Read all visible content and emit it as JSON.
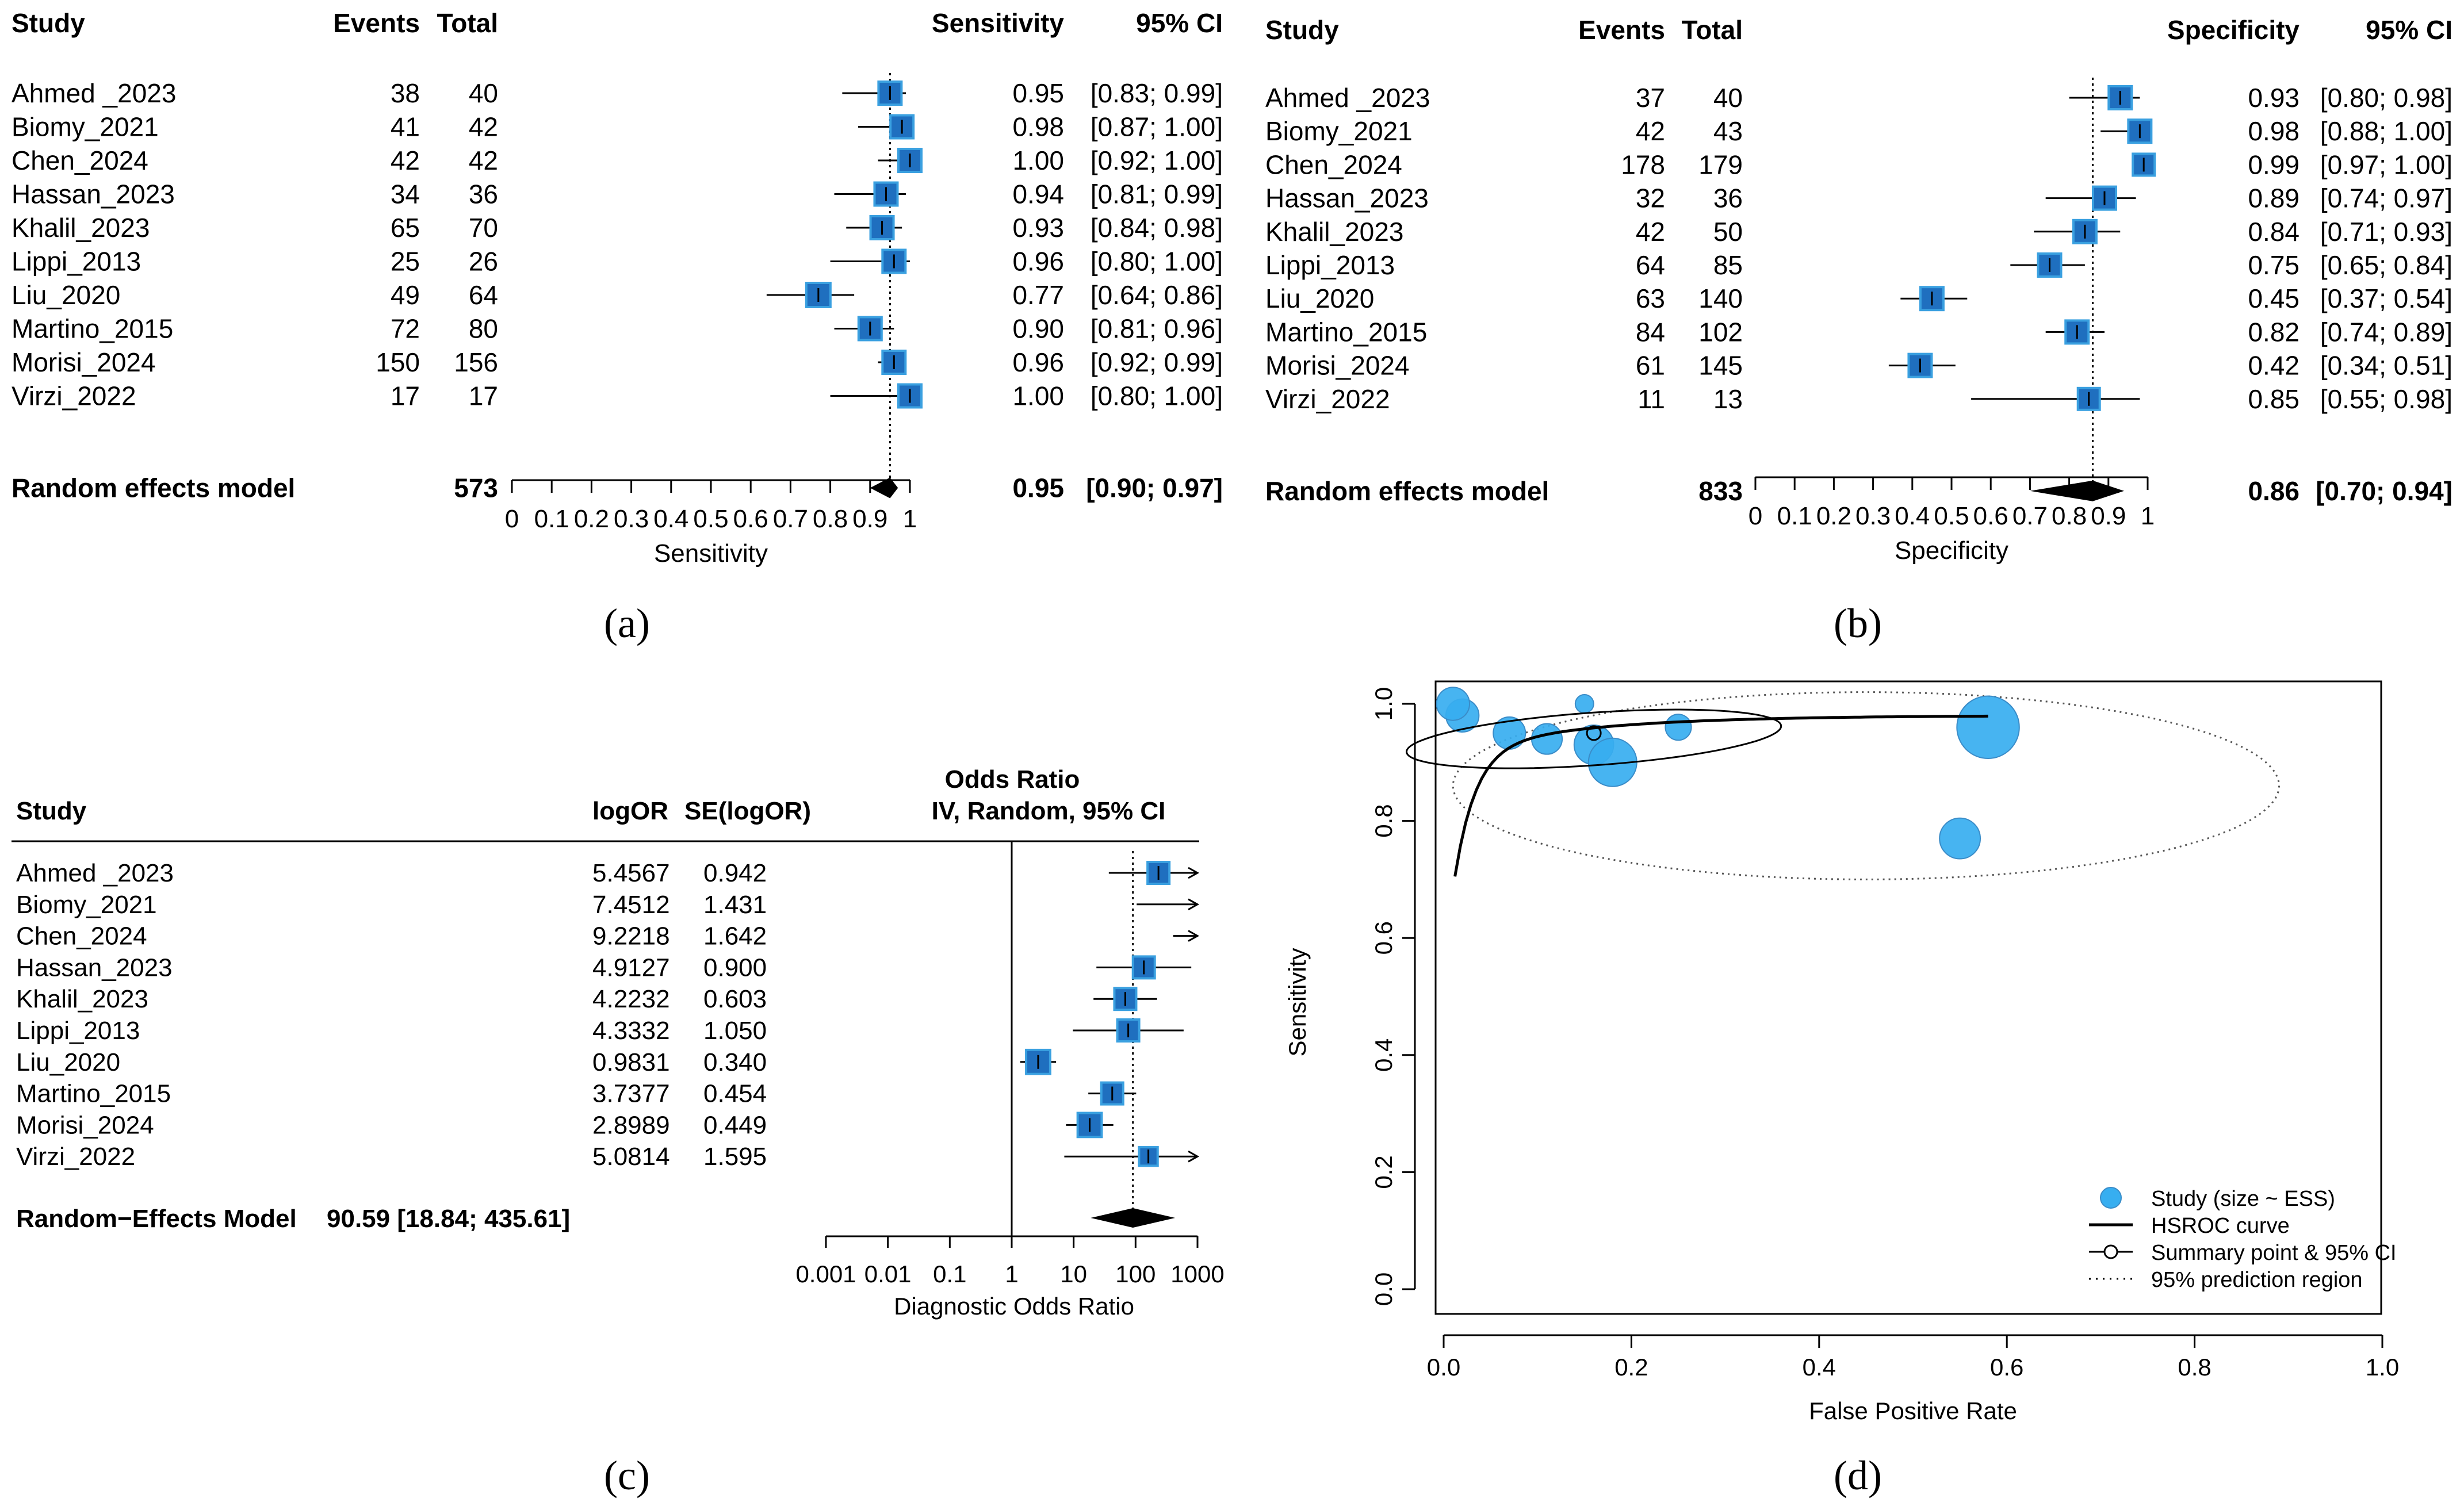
{
  "colors": {
    "box": "#1f6fbf",
    "box_edge": "#3aa0e0",
    "bubble": "#37aef0",
    "bubble_edge": "#3a8cc8",
    "ink": "#000000",
    "dotted": "#555555"
  },
  "panels": {
    "a": {
      "label": "(a)"
    },
    "b": {
      "label": "(b)"
    },
    "c": {
      "label": "(c)"
    },
    "d": {
      "label": "(d)"
    }
  },
  "chart_data": [
    {
      "id": "a",
      "type": "table",
      "headers": {
        "study": "Study",
        "events": "Events",
        "total": "Total",
        "estimate": "Sensitivity",
        "ci": "95% CI"
      },
      "rows": [
        {
          "study": "Ahmed _2023",
          "events": "38",
          "total": "40",
          "est": 0.95,
          "lo": 0.83,
          "hi": 0.99,
          "est_text": "0.95",
          "ci_text": "[0.83; 0.99]",
          "w": 1.0
        },
        {
          "study": "Biomy_2021",
          "events": "41",
          "total": "42",
          "est": 0.98,
          "lo": 0.87,
          "hi": 1.0,
          "est_text": "0.98",
          "ci_text": "[0.87; 1.00]",
          "w": 1.0
        },
        {
          "study": "Chen_2024",
          "events": "42",
          "total": "42",
          "est": 1.0,
          "lo": 0.92,
          "hi": 1.0,
          "est_text": "1.00",
          "ci_text": "[0.92; 1.00]",
          "w": 1.0
        },
        {
          "study": "Hassan_2023",
          "events": "34",
          "total": "36",
          "est": 0.94,
          "lo": 0.81,
          "hi": 0.99,
          "est_text": "0.94",
          "ci_text": "[0.81; 0.99]",
          "w": 1.0
        },
        {
          "study": "Khalil_2023",
          "events": "65",
          "total": "70",
          "est": 0.93,
          "lo": 0.84,
          "hi": 0.98,
          "est_text": "0.93",
          "ci_text": "[0.84; 0.98]",
          "w": 1.0
        },
        {
          "study": "Lippi_2013",
          "events": "25",
          "total": "26",
          "est": 0.96,
          "lo": 0.8,
          "hi": 1.0,
          "est_text": "0.96",
          "ci_text": "[0.80; 1.00]",
          "w": 1.0
        },
        {
          "study": "Liu_2020",
          "events": "49",
          "total": "64",
          "est": 0.77,
          "lo": 0.64,
          "hi": 0.86,
          "est_text": "0.77",
          "ci_text": "[0.64; 0.86]",
          "w": 1.05
        },
        {
          "study": "Martino_2015",
          "events": "72",
          "total": "80",
          "est": 0.9,
          "lo": 0.81,
          "hi": 0.96,
          "est_text": "0.90",
          "ci_text": "[0.81; 0.96]",
          "w": 1.0
        },
        {
          "study": "Morisi_2024",
          "events": "150",
          "total": "156",
          "est": 0.96,
          "lo": 0.92,
          "hi": 0.99,
          "est_text": "0.96",
          "ci_text": "[0.92; 0.99]",
          "w": 1.0
        },
        {
          "study": "Virzi_2022",
          "events": "17",
          "total": "17",
          "est": 1.0,
          "lo": 0.8,
          "hi": 1.0,
          "est_text": "1.00",
          "ci_text": "[0.80; 1.00]",
          "w": 1.0
        }
      ],
      "summary": {
        "label": "Random effects model",
        "total": "573",
        "est": 0.95,
        "lo": 0.9,
        "hi": 0.97,
        "est_text": "0.95",
        "ci_text": "[0.90; 0.97]"
      },
      "xlim": [
        0,
        1
      ],
      "ticks": [
        "0",
        "0.1",
        "0.2",
        "0.3",
        "0.4",
        "0.5",
        "0.6",
        "0.7",
        "0.8",
        "0.9",
        "1"
      ],
      "xlabel": "Sensitivity"
    },
    {
      "id": "b",
      "type": "table",
      "headers": {
        "study": "Study",
        "events": "Events",
        "total": "Total",
        "estimate": "Specificity",
        "ci": "95% CI"
      },
      "rows": [
        {
          "study": "Ahmed _2023",
          "events": "37",
          "total": "40",
          "est": 0.93,
          "lo": 0.8,
          "hi": 0.98,
          "est_text": "0.93",
          "ci_text": "[0.80; 0.98]",
          "w": 1.0
        },
        {
          "study": "Biomy_2021",
          "events": "42",
          "total": "43",
          "est": 0.98,
          "lo": 0.88,
          "hi": 1.0,
          "est_text": "0.98",
          "ci_text": "[0.88; 1.00]",
          "w": 1.0
        },
        {
          "study": "Chen_2024",
          "events": "178",
          "total": "179",
          "est": 0.99,
          "lo": 0.97,
          "hi": 1.0,
          "est_text": "0.99",
          "ci_text": "[0.97; 1.00]",
          "w": 0.95
        },
        {
          "study": "Hassan_2023",
          "events": "32",
          "total": "36",
          "est": 0.89,
          "lo": 0.74,
          "hi": 0.97,
          "est_text": "0.89",
          "ci_text": "[0.74; 0.97]",
          "w": 1.0
        },
        {
          "study": "Khalil_2023",
          "events": "42",
          "total": "50",
          "est": 0.84,
          "lo": 0.71,
          "hi": 0.93,
          "est_text": "0.84",
          "ci_text": "[0.71; 0.93]",
          "w": 1.0
        },
        {
          "study": "Lippi_2013",
          "events": "64",
          "total": "85",
          "est": 0.75,
          "lo": 0.65,
          "hi": 0.84,
          "est_text": "0.75",
          "ci_text": "[0.65; 0.84]",
          "w": 1.0
        },
        {
          "study": "Liu_2020",
          "events": "63",
          "total": "140",
          "est": 0.45,
          "lo": 0.37,
          "hi": 0.54,
          "est_text": "0.45",
          "ci_text": "[0.37; 0.54]",
          "w": 1.0
        },
        {
          "study": "Martino_2015",
          "events": "84",
          "total": "102",
          "est": 0.82,
          "lo": 0.74,
          "hi": 0.89,
          "est_text": "0.82",
          "ci_text": "[0.74; 0.89]",
          "w": 1.0
        },
        {
          "study": "Morisi_2024",
          "events": "61",
          "total": "145",
          "est": 0.42,
          "lo": 0.34,
          "hi": 0.51,
          "est_text": "0.42",
          "ci_text": "[0.34; 0.51]",
          "w": 1.0
        },
        {
          "study": "Virzi_2022",
          "events": "11",
          "total": "13",
          "est": 0.85,
          "lo": 0.55,
          "hi": 0.98,
          "est_text": "0.85",
          "ci_text": "[0.55; 0.98]",
          "w": 0.95
        }
      ],
      "summary": {
        "label": "Random effects model",
        "total": "833",
        "est": 0.86,
        "lo": 0.7,
        "hi": 0.94,
        "est_text": "0.86",
        "ci_text": "[0.70; 0.94]"
      },
      "xlim": [
        0,
        1
      ],
      "ticks": [
        "0",
        "0.1",
        "0.2",
        "0.3",
        "0.4",
        "0.5",
        "0.6",
        "0.7",
        "0.8",
        "0.9",
        "1"
      ],
      "xlabel": "Specificity"
    },
    {
      "id": "c",
      "type": "table",
      "headers": {
        "study": "Study",
        "logor": "logOR",
        "se": "SE(logOR)",
        "estimate_line1": "Odds Ratio",
        "estimate_line2": "IV, Random, 95% CI"
      },
      "rows": [
        {
          "study": "Ahmed _2023",
          "logor": "5.4567",
          "se": "0.942",
          "est": 5.4567,
          "sev": 0.942,
          "arrow": true,
          "box": true,
          "w": 1.0
        },
        {
          "study": "Biomy_2021",
          "logor": "7.4512",
          "se": "1.431",
          "est": 7.4512,
          "sev": 1.431,
          "arrow": true,
          "box": false,
          "w": 0
        },
        {
          "study": "Chen_2024",
          "logor": "9.2218",
          "se": "1.642",
          "est": 9.2218,
          "sev": 1.642,
          "arrow": true,
          "box": false,
          "w": 0
        },
        {
          "study": "Hassan_2023",
          "logor": "4.9127",
          "se": "0.900",
          "est": 4.9127,
          "sev": 0.9,
          "arrow": false,
          "box": true,
          "w": 1.0
        },
        {
          "study": "Khalil_2023",
          "logor": "4.2232",
          "se": "0.603",
          "est": 4.2232,
          "sev": 0.603,
          "arrow": false,
          "box": true,
          "w": 1.0
        },
        {
          "study": "Lippi_2013",
          "logor": "4.3332",
          "se": "1.050",
          "est": 4.3332,
          "sev": 1.05,
          "arrow": false,
          "box": true,
          "w": 1.0
        },
        {
          "study": "Liu_2020",
          "logor": "0.9831",
          "se": "0.340",
          "est": 0.9831,
          "sev": 0.34,
          "arrow": false,
          "box": true,
          "w": 1.1
        },
        {
          "study": "Martino_2015",
          "logor": "3.7377",
          "se": "0.454",
          "est": 3.7377,
          "sev": 0.454,
          "arrow": false,
          "box": true,
          "w": 1.0
        },
        {
          "study": "Morisi_2024",
          "logor": "2.8989",
          "se": "0.449",
          "est": 2.8989,
          "sev": 0.449,
          "arrow": false,
          "box": true,
          "w": 1.1
        },
        {
          "study": "Virzi_2022",
          "logor": "5.0814",
          "se": "1.595",
          "est": 5.0814,
          "sev": 1.595,
          "arrow": true,
          "box": true,
          "w": 0.85
        }
      ],
      "summary": {
        "label": "Random−Effects Model",
        "value_text": "90.59 [18.84; 435.61]",
        "est": 90.59,
        "lo": 18.84,
        "hi": 435.61
      },
      "xlim": [
        0.001,
        1000
      ],
      "ticks": [
        "0.001",
        "0.01",
        "0.1",
        "1",
        "10",
        "100",
        "1000"
      ],
      "xlabel": "Diagnostic Odds Ratio"
    },
    {
      "id": "d",
      "type": "scatter",
      "xlabel": "False Positive Rate",
      "ylabel": "Sensitivity",
      "xlim": [
        0,
        1
      ],
      "ylim": [
        0,
        1
      ],
      "xticks": [
        "0.0",
        "0.2",
        "0.4",
        "0.6",
        "0.8",
        "1.0"
      ],
      "yticks": [
        "0.0",
        "0.2",
        "0.4",
        "0.6",
        "0.8",
        "1.0"
      ],
      "points": [
        {
          "fpr": 0.07,
          "sens": 0.95,
          "ess": 40
        },
        {
          "fpr": 0.02,
          "sens": 0.98,
          "ess": 42
        },
        {
          "fpr": 0.01,
          "sens": 1.0,
          "ess": 42
        },
        {
          "fpr": 0.11,
          "sens": 0.94,
          "ess": 36
        },
        {
          "fpr": 0.16,
          "sens": 0.93,
          "ess": 60
        },
        {
          "fpr": 0.25,
          "sens": 0.96,
          "ess": 26
        },
        {
          "fpr": 0.55,
          "sens": 0.77,
          "ess": 64
        },
        {
          "fpr": 0.18,
          "sens": 0.9,
          "ess": 90
        },
        {
          "fpr": 0.58,
          "sens": 0.96,
          "ess": 150
        },
        {
          "fpr": 0.15,
          "sens": 1.0,
          "ess": 13
        }
      ],
      "summary_point": {
        "fpr": 0.16,
        "sens": 0.95
      },
      "confidence_region": {
        "cx": 0.16,
        "cy": 0.94,
        "rx": 0.2,
        "ry": 0.045
      },
      "prediction_region": {
        "cx": 0.45,
        "cy": 0.86,
        "rx": 0.44,
        "ry": 0.16
      },
      "legend": [
        {
          "key": "study",
          "label": "Study (size ~ ESS)"
        },
        {
          "key": "hsroc",
          "label": "HSROC curve"
        },
        {
          "key": "summary",
          "label": "Summary point & 95% CI"
        },
        {
          "key": "prediction",
          "label": "95% prediction region"
        }
      ],
      "legend_position": "bottom-right"
    }
  ]
}
